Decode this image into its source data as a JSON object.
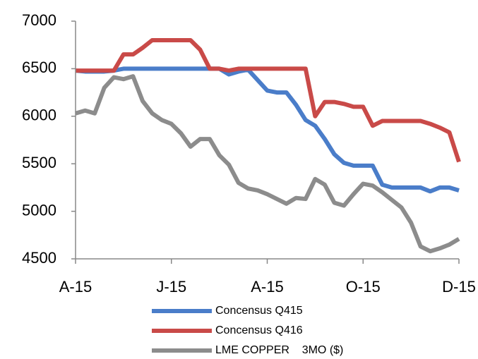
{
  "chart_data": {
    "type": "line",
    "categories": [
      "A-15",
      null,
      null,
      null,
      null,
      null,
      null,
      null,
      null,
      null,
      "J-15",
      null,
      null,
      null,
      null,
      null,
      null,
      null,
      null,
      null,
      "A-15",
      null,
      null,
      null,
      null,
      null,
      null,
      null,
      null,
      null,
      "O-15",
      null,
      null,
      null,
      null,
      null,
      null,
      null,
      null,
      null,
      "D-15"
    ],
    "series": [
      {
        "name": "Concensus Q415",
        "color": "#4a7dc9",
        "values": [
          6480,
          6470,
          6470,
          6470,
          6480,
          6500,
          6500,
          6500,
          6500,
          6500,
          6500,
          6500,
          6500,
          6500,
          6500,
          6500,
          6440,
          6470,
          6490,
          6380,
          6270,
          6250,
          6250,
          6120,
          5960,
          5900,
          5760,
          5600,
          5510,
          5480,
          5480,
          5480,
          5280,
          5250,
          5250,
          5250,
          5250,
          5210,
          5250,
          5250,
          5220
        ]
      },
      {
        "name": "Concensus Q416",
        "color": "#c94a48",
        "values": [
          6480,
          6480,
          6480,
          6480,
          6480,
          6650,
          6650,
          6720,
          6800,
          6800,
          6800,
          6800,
          6800,
          6700,
          6500,
          6500,
          6480,
          6500,
          6500,
          6500,
          6500,
          6500,
          6500,
          6500,
          6500,
          6000,
          6150,
          6150,
          6130,
          6100,
          6100,
          5900,
          5950,
          5950,
          5950,
          5950,
          5950,
          5920,
          5880,
          5830,
          5520
        ]
      },
      {
        "name": "LME COPPER    3MO ($)",
        "color": "#8c8c8c",
        "values": [
          6030,
          6060,
          6030,
          6300,
          6410,
          6390,
          6420,
          6160,
          6030,
          5960,
          5920,
          5820,
          5680,
          5760,
          5760,
          5590,
          5490,
          5300,
          5240,
          5220,
          5180,
          5130,
          5080,
          5140,
          5130,
          5340,
          5280,
          5090,
          5060,
          5180,
          5290,
          5270,
          5200,
          5120,
          5040,
          4880,
          4630,
          4580,
          4610,
          4650,
          4710
        ]
      }
    ],
    "ylim": [
      4500,
      7000
    ],
    "yticks": [
      4500,
      5000,
      5500,
      6000,
      6500,
      7000
    ]
  }
}
